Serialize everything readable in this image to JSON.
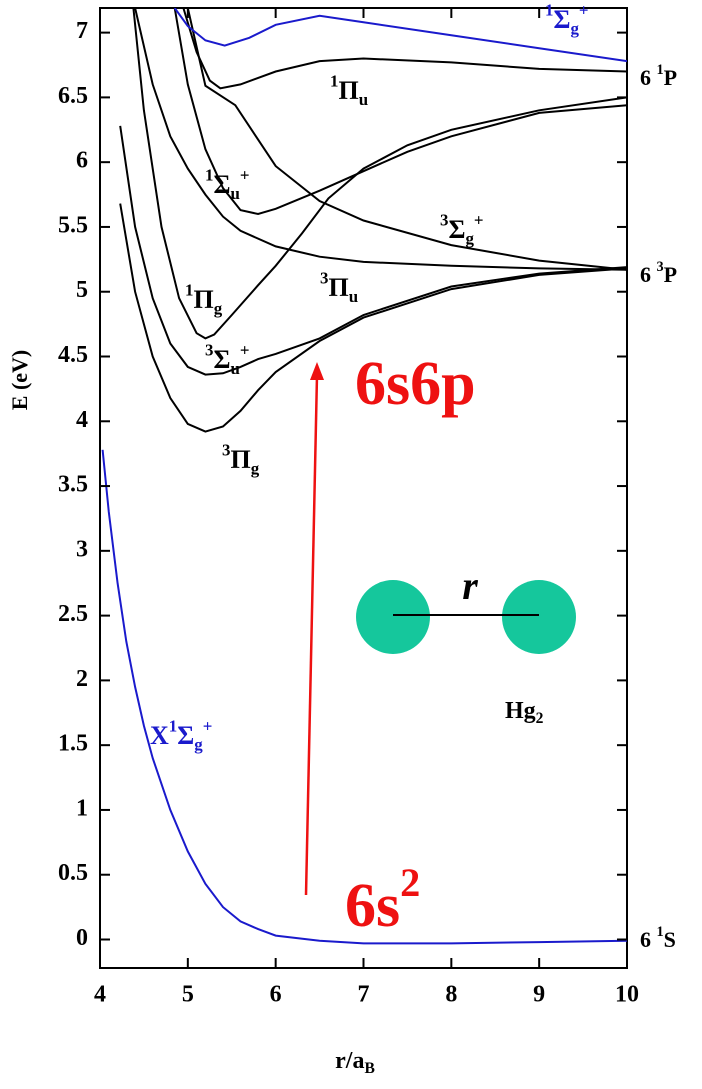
{
  "chart_data": {
    "type": "line",
    "x_label": [
      {
        "text": "r/a"
      },
      {
        "text": "B",
        "style": "sub"
      }
    ],
    "y_label": "E (eV)",
    "xlim": [
      4,
      10
    ],
    "ylim": [
      -0.22,
      7.19
    ],
    "xticks": [
      4,
      5,
      6,
      7,
      8,
      9,
      10
    ],
    "yticks": [
      0,
      0.5,
      1,
      1.5,
      2,
      2.5,
      3,
      3.5,
      4,
      4.5,
      5,
      5.5,
      6,
      6.5,
      7
    ],
    "series": [
      {
        "label": [
          {
            "text": "X"
          },
          {
            "text": "1",
            "style": "sup"
          },
          {
            "text": "Σ"
          },
          {
            "text": "g",
            "style": "sub"
          },
          {
            "text": "+",
            "style": "sup"
          }
        ],
        "color": "#1a1acc",
        "x": [
          4.03,
          4.1,
          4.2,
          4.3,
          4.4,
          4.5,
          4.6,
          4.8,
          5.0,
          5.2,
          5.4,
          5.6,
          5.8,
          6.0,
          6.5,
          7,
          8,
          9,
          10
        ],
        "values": [
          3.78,
          3.3,
          2.75,
          2.3,
          1.95,
          1.65,
          1.4,
          1.0,
          0.68,
          0.43,
          0.25,
          0.14,
          0.08,
          0.03,
          -0.01,
          -0.03,
          -0.03,
          -0.02,
          -0.01
        ]
      },
      {
        "label": [
          {
            "text": "3",
            "style": "sup"
          },
          {
            "text": "Π"
          },
          {
            "text": "g",
            "style": "sub"
          }
        ],
        "color": "#000000",
        "x": [
          4.23,
          4.4,
          4.6,
          4.8,
          5.0,
          5.2,
          5.4,
          5.6,
          5.8,
          6.0,
          6.5,
          7,
          8,
          9,
          10
        ],
        "values": [
          5.68,
          5.0,
          4.5,
          4.18,
          3.98,
          3.92,
          3.96,
          4.08,
          4.24,
          4.38,
          4.62,
          4.8,
          5.02,
          5.13,
          5.18
        ]
      },
      {
        "label": [
          {
            "text": "3",
            "style": "sup"
          },
          {
            "text": "Σ"
          },
          {
            "text": "u",
            "style": "sub"
          },
          {
            "text": "+",
            "style": "sup"
          }
        ],
        "color": "#000000",
        "x": [
          4.23,
          4.4,
          4.6,
          4.8,
          5.0,
          5.2,
          5.4,
          5.6,
          5.8,
          6.0,
          6.5,
          7,
          8,
          9,
          10
        ],
        "values": [
          6.28,
          5.5,
          4.95,
          4.6,
          4.42,
          4.36,
          4.37,
          4.42,
          4.48,
          4.52,
          4.64,
          4.82,
          5.04,
          5.14,
          5.19
        ]
      },
      {
        "label": [
          {
            "text": "1",
            "style": "sup"
          },
          {
            "text": "Π"
          },
          {
            "text": "g",
            "style": "sub"
          }
        ],
        "color": "#000000",
        "x": [
          4.38,
          4.5,
          4.7,
          4.9,
          5.1,
          5.2,
          5.3,
          5.5,
          5.8,
          6.0,
          6.3,
          6.6,
          7,
          7.5,
          8,
          9,
          10
        ],
        "values": [
          7.19,
          6.4,
          5.5,
          4.95,
          4.68,
          4.64,
          4.67,
          4.82,
          5.05,
          5.2,
          5.45,
          5.72,
          5.95,
          6.13,
          6.25,
          6.4,
          6.5
        ]
      },
      {
        "label": [
          {
            "text": "3",
            "style": "sup"
          },
          {
            "text": "Π"
          },
          {
            "text": "u",
            "style": "sub"
          }
        ],
        "color": "#000000",
        "x": [
          4.4,
          4.6,
          4.8,
          5.0,
          5.2,
          5.4,
          5.6,
          6.0,
          6.5,
          7,
          8,
          9,
          10
        ],
        "values": [
          7.19,
          6.6,
          6.2,
          5.95,
          5.75,
          5.58,
          5.47,
          5.35,
          5.27,
          5.23,
          5.2,
          5.18,
          5.17
        ]
      },
      {
        "label": [
          {
            "text": "1",
            "style": "sup"
          },
          {
            "text": "Σ"
          },
          {
            "text": "u",
            "style": "sub"
          },
          {
            "text": "+",
            "style": "sup"
          }
        ],
        "color": "#000000",
        "x": [
          4.85,
          5.0,
          5.2,
          5.4,
          5.6,
          5.8,
          6.0,
          6.5,
          7,
          7.5,
          8,
          9,
          10
        ],
        "values": [
          7.19,
          6.6,
          6.1,
          5.8,
          5.63,
          5.6,
          5.64,
          5.78,
          5.93,
          6.08,
          6.2,
          6.38,
          6.44
        ]
      },
      {
        "label": [
          {
            "text": "3",
            "style": "sup"
          },
          {
            "text": "Σ"
          },
          {
            "text": "g",
            "style": "sub"
          },
          {
            "text": "+",
            "style": "sup"
          }
        ],
        "color": "#000000",
        "x": [
          5.0,
          5.2,
          5.54,
          6.0,
          6.5,
          7,
          8,
          9,
          10
        ],
        "values": [
          7.19,
          6.59,
          6.44,
          5.97,
          5.7,
          5.55,
          5.36,
          5.24,
          5.17
        ]
      },
      {
        "label": [
          {
            "text": "1",
            "style": "sup"
          },
          {
            "text": "Π"
          },
          {
            "text": "u",
            "style": "sub"
          }
        ],
        "color": "#000000",
        "x": [
          4.95,
          5.1,
          5.25,
          5.37,
          5.6,
          6.0,
          6.5,
          7,
          8,
          9,
          10
        ],
        "values": [
          7.19,
          6.85,
          6.63,
          6.57,
          6.6,
          6.7,
          6.78,
          6.8,
          6.77,
          6.72,
          6.7
        ]
      },
      {
        "label": [
          {
            "text": "1",
            "style": "sup"
          },
          {
            "text": "Σ"
          },
          {
            "text": "g",
            "style": "sub"
          },
          {
            "text": "+",
            "style": "sup"
          }
        ],
        "color": "#1a1acc",
        "x": [
          4.85,
          5.0,
          5.2,
          5.42,
          5.7,
          6.0,
          6.5,
          7,
          8,
          9,
          10
        ],
        "values": [
          7.19,
          7.05,
          6.94,
          6.9,
          6.96,
          7.06,
          7.13,
          7.08,
          6.98,
          6.88,
          6.78
        ]
      }
    ],
    "asymptotes": [
      [
        {
          "text": "6 "
        },
        {
          "text": "1",
          "style": "sup"
        },
        {
          "text": "P"
        }
      ],
      [
        {
          "text": "6 "
        },
        {
          "text": "3",
          "style": "sup"
        },
        {
          "text": "P"
        }
      ],
      [
        {
          "text": "6 "
        },
        {
          "text": "1",
          "style": "sup"
        },
        {
          "text": "S"
        }
      ]
    ],
    "upper_configuration": "6s6p",
    "lower_configuration": [
      {
        "text": "6s"
      },
      {
        "text": "2",
        "style": "sup"
      }
    ],
    "bond_label": "r",
    "molecule": [
      {
        "text": "Hg"
      },
      {
        "text": "2",
        "style": "sub"
      }
    ]
  }
}
